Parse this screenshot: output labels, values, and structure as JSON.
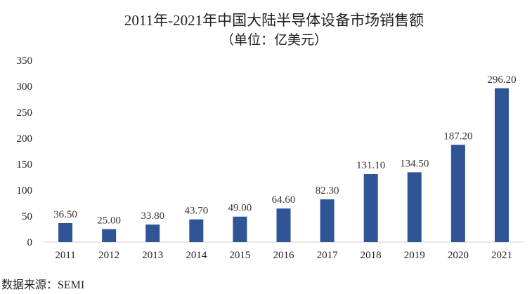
{
  "chart_data": {
    "type": "bar",
    "title": "2011年-2021年中国大陆半导体设备市场销售额",
    "subtitle": "（单位：亿美元）",
    "xlabel": "",
    "ylabel": "",
    "categories": [
      "2011",
      "2012",
      "2013",
      "2014",
      "2015",
      "2016",
      "2017",
      "2018",
      "2019",
      "2020",
      "2021"
    ],
    "values": [
      36.5,
      25.0,
      33.8,
      43.7,
      49.0,
      64.6,
      82.3,
      131.1,
      134.5,
      187.2,
      296.2
    ],
    "data_labels": [
      "36.50",
      "25.00",
      "33.80",
      "43.70",
      "49.00",
      "64.60",
      "82.30",
      "131.10",
      "134.50",
      "187.20",
      "296.20"
    ],
    "ylim": [
      0,
      350
    ],
    "yticks": [
      "0",
      "50",
      "100",
      "150",
      "200",
      "250",
      "300",
      "350"
    ],
    "grid": false,
    "legend": "none",
    "bar_color": "#2f5597"
  },
  "source": "数据来源：SEMI"
}
